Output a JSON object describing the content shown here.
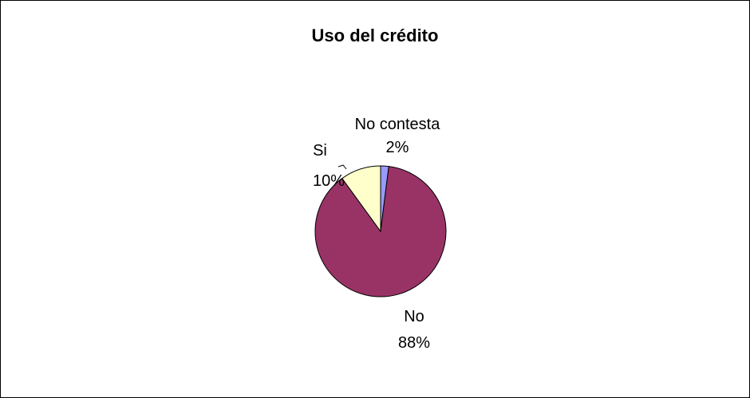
{
  "chart_data": {
    "type": "pie",
    "title": "Uso del crédito",
    "slices": [
      {
        "label": "No contesta",
        "percent_label": "2%",
        "value": 2,
        "color": "#9999ff"
      },
      {
        "label": "No",
        "percent_label": "88%",
        "value": 88,
        "color": "#993366"
      },
      {
        "label": "Si",
        "percent_label": "10%",
        "value": 10,
        "color": "#ffffcc"
      }
    ],
    "start_angle_deg": 0,
    "direction": "clockwise",
    "slice_outline": "#000000",
    "legend": "none"
  }
}
